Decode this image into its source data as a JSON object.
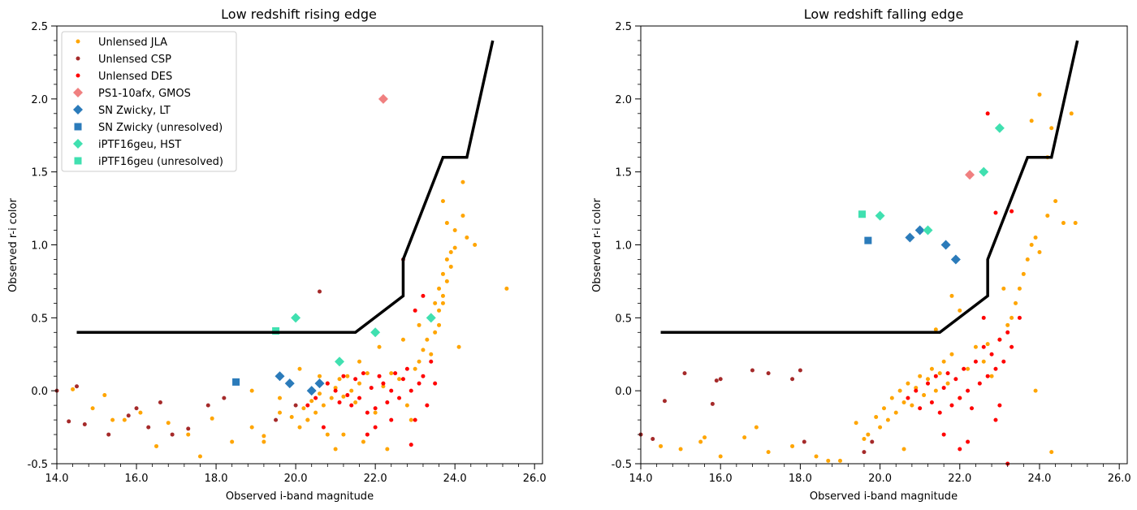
{
  "chart_data": [
    {
      "type": "scatter",
      "title": "Low redshift rising edge",
      "xlabel": "Observed i-band magnitude",
      "ylabel": "Observed r-i color",
      "xlim": [
        14.0,
        26.2
      ],
      "ylim": [
        -0.5,
        2.5
      ],
      "xticks": [
        "14.0",
        "16.0",
        "18.0",
        "20.0",
        "22.0",
        "24.0",
        "26.0"
      ],
      "yticks": [
        "-0.5",
        "0.0",
        "0.5",
        "1.0",
        "1.5",
        "2.0",
        "2.5"
      ],
      "legend_position": "top-left",
      "legend": [
        {
          "label": "Unlensed JLA",
          "marker": "dot",
          "color": "#ffa500"
        },
        {
          "label": "Unlensed CSP",
          "marker": "dot",
          "color": "#a52a2a"
        },
        {
          "label": "Unlensed DES",
          "marker": "dot",
          "color": "#ff0000"
        },
        {
          "label": "PS1-10afx, GMOS",
          "marker": "diamond",
          "color": "#f08080"
        },
        {
          "label": "SN Zwicky, LT",
          "marker": "diamond",
          "color": "#2b7bba"
        },
        {
          "label": "SN Zwicky (unresolved)",
          "marker": "square",
          "color": "#2b7bba"
        },
        {
          "label": "iPTF16geu, HST",
          "marker": "diamond",
          "color": "#40e0b0"
        },
        {
          "label": "iPTF16geu (unresolved)",
          "marker": "square",
          "color": "#40e0b0"
        }
      ],
      "boundary_line": {
        "x": [
          14.5,
          21.5,
          22.7,
          22.7,
          23.7,
          24.3,
          24.95
        ],
        "y": [
          0.4,
          0.4,
          0.65,
          0.9,
          1.6,
          1.6,
          2.4
        ]
      },
      "series": [
        {
          "name": "Unlensed JLA",
          "marker": "dot",
          "color": "#ffa500",
          "x": [
            14.4,
            14.9,
            15.2,
            15.7,
            16.1,
            16.8,
            17.3,
            17.9,
            18.4,
            18.9,
            19.2,
            19.6,
            19.9,
            20.1,
            20.2,
            20.3,
            20.4,
            20.5,
            20.6,
            20.7,
            20.8,
            20.9,
            21.0,
            21.1,
            21.2,
            21.3,
            21.4,
            21.5,
            21.6,
            21.8,
            22.0,
            22.2,
            22.4,
            22.6,
            22.8,
            23.0,
            23.1,
            23.2,
            23.3,
            23.4,
            23.5,
            23.6,
            23.7,
            23.8,
            23.9,
            24.0,
            24.2,
            24.3,
            24.5,
            25.3,
            20.1,
            20.6,
            21.2,
            21.7,
            22.3,
            22.9,
            23.5,
            23.6,
            23.7,
            23.8,
            23.9,
            24.1,
            23.4,
            23.6,
            23.7,
            23.8,
            24.2,
            24.0,
            23.7,
            21.0,
            20.8,
            19.6,
            18.9,
            17.6,
            16.5,
            15.4,
            22.1,
            21.6,
            20.3,
            19.2,
            23.1,
            22.7
          ],
          "y": [
            0.01,
            -0.12,
            -0.03,
            -0.2,
            -0.15,
            -0.22,
            -0.3,
            -0.19,
            -0.35,
            -0.25,
            -0.31,
            -0.05,
            -0.18,
            -0.25,
            -0.12,
            -0.2,
            -0.07,
            -0.15,
            -0.02,
            -0.1,
            0.05,
            -0.05,
            0.02,
            0.08,
            -0.04,
            0.1,
            0.0,
            -0.08,
            0.05,
            0.12,
            -0.15,
            0.03,
            0.12,
            0.08,
            -0.1,
            0.15,
            0.2,
            0.28,
            0.35,
            0.5,
            0.6,
            0.7,
            0.8,
            0.9,
            0.95,
            1.1,
            1.2,
            1.05,
            1.0,
            0.7,
            0.15,
            0.1,
            -0.3,
            -0.35,
            -0.4,
            -0.2,
            0.4,
            0.55,
            0.65,
            0.75,
            0.85,
            0.3,
            0.25,
            0.45,
            1.3,
            1.15,
            1.43,
            0.98,
            0.6,
            -0.4,
            -0.3,
            -0.15,
            0.0,
            -0.45,
            -0.38,
            -0.2,
            0.3,
            0.2,
            -0.2,
            -0.35,
            0.45,
            0.35
          ]
        },
        {
          "name": "Unlensed CSP",
          "marker": "dot",
          "color": "#a52a2a",
          "x": [
            14.0,
            14.3,
            14.5,
            14.7,
            15.3,
            15.8,
            16.0,
            16.3,
            16.6,
            16.9,
            17.3,
            17.8,
            18.2,
            19.5,
            20.0,
            20.6,
            22.7
          ],
          "y": [
            0.0,
            -0.21,
            0.03,
            -0.23,
            -0.3,
            -0.17,
            -0.12,
            -0.25,
            -0.08,
            -0.3,
            -0.26,
            -0.1,
            -0.05,
            -0.2,
            -0.1,
            0.68,
            0.9
          ]
        },
        {
          "name": "Unlensed DES",
          "marker": "dot",
          "color": "#ff0000",
          "x": [
            20.3,
            20.5,
            20.8,
            21.0,
            21.1,
            21.2,
            21.3,
            21.4,
            21.5,
            21.6,
            21.7,
            21.8,
            21.9,
            22.0,
            22.1,
            22.2,
            22.3,
            22.4,
            22.5,
            22.6,
            22.7,
            22.8,
            22.9,
            23.0,
            23.1,
            23.2,
            23.3,
            23.4,
            23.5,
            22.0,
            21.8,
            22.4,
            22.9,
            23.0,
            23.2,
            20.7
          ],
          "y": [
            -0.1,
            -0.05,
            0.05,
            0.0,
            -0.08,
            0.1,
            -0.03,
            -0.1,
            0.08,
            -0.05,
            0.12,
            -0.15,
            0.02,
            -0.12,
            0.1,
            0.05,
            -0.08,
            0.0,
            0.12,
            -0.05,
            0.08,
            0.15,
            0.0,
            -0.2,
            0.05,
            0.1,
            -0.1,
            0.2,
            0.05,
            -0.25,
            -0.3,
            -0.2,
            -0.37,
            0.55,
            0.65,
            -0.25
          ]
        },
        {
          "name": "PS1-10afx, GMOS",
          "marker": "diamond",
          "color": "#f08080",
          "x": [
            22.2
          ],
          "y": [
            2.0
          ]
        },
        {
          "name": "SN Zwicky, LT",
          "marker": "diamond",
          "color": "#2b7bba",
          "x": [
            19.6,
            19.85,
            20.4,
            20.6
          ],
          "y": [
            0.1,
            0.05,
            0.0,
            0.05
          ]
        },
        {
          "name": "SN Zwicky (unresolved)",
          "marker": "square",
          "color": "#2b7bba",
          "x": [
            18.5
          ],
          "y": [
            0.06
          ]
        },
        {
          "name": "iPTF16geu, HST",
          "marker": "diamond",
          "color": "#40e0b0",
          "x": [
            20.0,
            21.1,
            22.0,
            23.4
          ],
          "y": [
            0.5,
            0.2,
            0.4,
            0.5
          ]
        },
        {
          "name": "iPTF16geu (unresolved)",
          "marker": "square",
          "color": "#40e0b0",
          "x": [
            19.5
          ],
          "y": [
            0.41
          ]
        }
      ]
    },
    {
      "type": "scatter",
      "title": "Low redshift falling edge",
      "xlabel": "Observed i-band magnitude",
      "ylabel": "Observed r-i color",
      "xlim": [
        14.0,
        26.2
      ],
      "ylim": [
        -0.5,
        2.5
      ],
      "xticks": [
        "14.0",
        "16.0",
        "18.0",
        "20.0",
        "22.0",
        "24.0",
        "26.0"
      ],
      "yticks": [
        "-0.5",
        "0.0",
        "0.5",
        "1.0",
        "1.5",
        "2.0",
        "2.5"
      ],
      "boundary_line": {
        "x": [
          14.5,
          21.5,
          22.7,
          22.7,
          23.7,
          24.3,
          24.95
        ],
        "y": [
          0.4,
          0.4,
          0.65,
          0.9,
          1.6,
          1.6,
          2.4
        ]
      },
      "series": [
        {
          "name": "Unlensed JLA",
          "marker": "dot",
          "color": "#ffa500",
          "x": [
            14.5,
            15.0,
            15.5,
            16.0,
            16.6,
            17.2,
            17.8,
            18.4,
            19.0,
            19.4,
            19.7,
            19.9,
            20.0,
            20.1,
            20.2,
            20.3,
            20.4,
            20.5,
            20.6,
            20.7,
            20.8,
            20.9,
            21.0,
            21.1,
            21.2,
            21.3,
            21.4,
            21.5,
            21.6,
            21.7,
            21.8,
            22.0,
            22.2,
            22.4,
            22.6,
            22.8,
            23.0,
            23.2,
            23.3,
            23.4,
            23.5,
            23.6,
            23.7,
            23.8,
            23.9,
            24.0,
            24.2,
            24.4,
            24.6,
            24.8,
            24.0,
            24.3,
            23.8,
            24.9,
            21.8,
            22.0,
            24.2,
            15.6,
            16.9,
            18.7,
            19.6,
            20.6,
            21.4,
            22.7,
            23.1,
            23.9,
            24.3
          ],
          "y": [
            -0.38,
            -0.4,
            -0.35,
            -0.45,
            -0.32,
            -0.42,
            -0.38,
            -0.45,
            -0.48,
            -0.22,
            -0.3,
            -0.18,
            -0.25,
            -0.12,
            -0.2,
            -0.05,
            -0.15,
            0.0,
            -0.08,
            0.05,
            -0.1,
            0.02,
            0.1,
            -0.03,
            0.08,
            0.15,
            0.0,
            0.12,
            0.2,
            0.05,
            0.25,
            -0.05,
            0.15,
            0.3,
            0.2,
            0.1,
            0.35,
            0.45,
            0.5,
            0.6,
            0.7,
            0.8,
            0.9,
            1.0,
            1.05,
            0.95,
            1.2,
            1.3,
            1.15,
            1.9,
            2.03,
            1.8,
            1.85,
            1.15,
            0.65,
            0.55,
            1.6,
            -0.32,
            -0.25,
            -0.48,
            -0.33,
            -0.4,
            0.42,
            0.32,
            0.7,
            0.0,
            -0.42
          ]
        },
        {
          "name": "Unlensed CSP",
          "marker": "dot",
          "color": "#a52a2a",
          "x": [
            14.0,
            14.3,
            14.6,
            15.1,
            15.8,
            15.9,
            16.0,
            16.8,
            17.2,
            17.8,
            18.0,
            18.1,
            19.6,
            19.8
          ],
          "y": [
            -0.3,
            -0.33,
            -0.07,
            0.12,
            -0.09,
            0.07,
            0.08,
            0.14,
            0.12,
            0.08,
            0.14,
            -0.35,
            -0.42,
            -0.35
          ]
        },
        {
          "name": "Unlensed DES",
          "marker": "dot",
          "color": "#ff0000",
          "x": [
            20.7,
            20.9,
            21.0,
            21.2,
            21.3,
            21.4,
            21.5,
            21.6,
            21.7,
            21.8,
            21.9,
            22.0,
            22.1,
            22.2,
            22.3,
            22.4,
            22.5,
            22.6,
            22.7,
            22.8,
            22.9,
            23.0,
            23.1,
            23.2,
            23.3,
            21.6,
            22.0,
            22.2,
            22.6,
            22.7,
            22.9,
            23.3,
            23.5,
            22.9,
            23.0,
            23.2
          ],
          "y": [
            -0.05,
            0.0,
            -0.12,
            0.05,
            -0.08,
            0.1,
            -0.15,
            0.02,
            0.12,
            -0.1,
            0.08,
            -0.05,
            0.15,
            0.0,
            -0.12,
            0.2,
            0.05,
            0.3,
            0.1,
            0.25,
            0.15,
            0.35,
            0.2,
            0.4,
            0.3,
            -0.3,
            -0.4,
            -0.35,
            0.5,
            1.9,
            1.22,
            1.23,
            0.5,
            -0.2,
            -0.1,
            -0.5
          ]
        },
        {
          "name": "PS1-10afx, GMOS",
          "marker": "diamond",
          "color": "#f08080",
          "x": [
            22.25
          ],
          "y": [
            1.48
          ]
        },
        {
          "name": "SN Zwicky, LT",
          "marker": "diamond",
          "color": "#2b7bba",
          "x": [
            20.75,
            21.0,
            21.65,
            21.9
          ],
          "y": [
            1.05,
            1.1,
            1.0,
            0.9
          ]
        },
        {
          "name": "SN Zwicky (unresolved)",
          "marker": "square",
          "color": "#2b7bba",
          "x": [
            19.7
          ],
          "y": [
            1.03
          ]
        },
        {
          "name": "iPTF16geu, HST",
          "marker": "diamond",
          "color": "#40e0b0",
          "x": [
            20.0,
            21.2,
            22.6,
            23.0
          ],
          "y": [
            1.2,
            1.1,
            1.5,
            1.8
          ]
        },
        {
          "name": "iPTF16geu (unresolved)",
          "marker": "square",
          "color": "#40e0b0",
          "x": [
            19.55
          ],
          "y": [
            1.21
          ]
        }
      ]
    }
  ]
}
